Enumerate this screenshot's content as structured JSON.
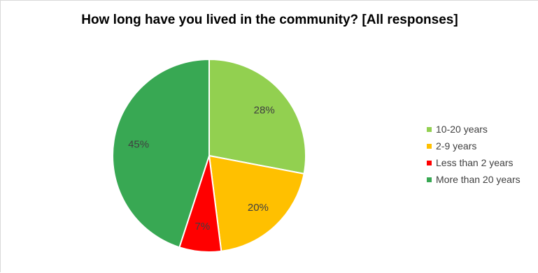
{
  "chart_data": {
    "type": "pie",
    "title": "How long have you lived in the community? [All responses]",
    "categories": [
      "10-20 years",
      "2-9 years",
      "Less than 2 years",
      "More than 20 years"
    ],
    "values": [
      28,
      20,
      7,
      45
    ],
    "labels": [
      "28%",
      "20%",
      "7%",
      "45%"
    ],
    "colors": [
      "#92D050",
      "#FFC000",
      "#FF0000",
      "#38A853"
    ],
    "legend": "right",
    "start_angle": "12 o'clock",
    "direction": "clockwise"
  },
  "legend": {
    "items": [
      {
        "label": "10-20 years",
        "color": "#92D050"
      },
      {
        "label": "2-9 years",
        "color": "#FFC000"
      },
      {
        "label": "Less than 2 years",
        "color": "#FF0000"
      },
      {
        "label": "More than 20 years",
        "color": "#38A853"
      }
    ]
  }
}
